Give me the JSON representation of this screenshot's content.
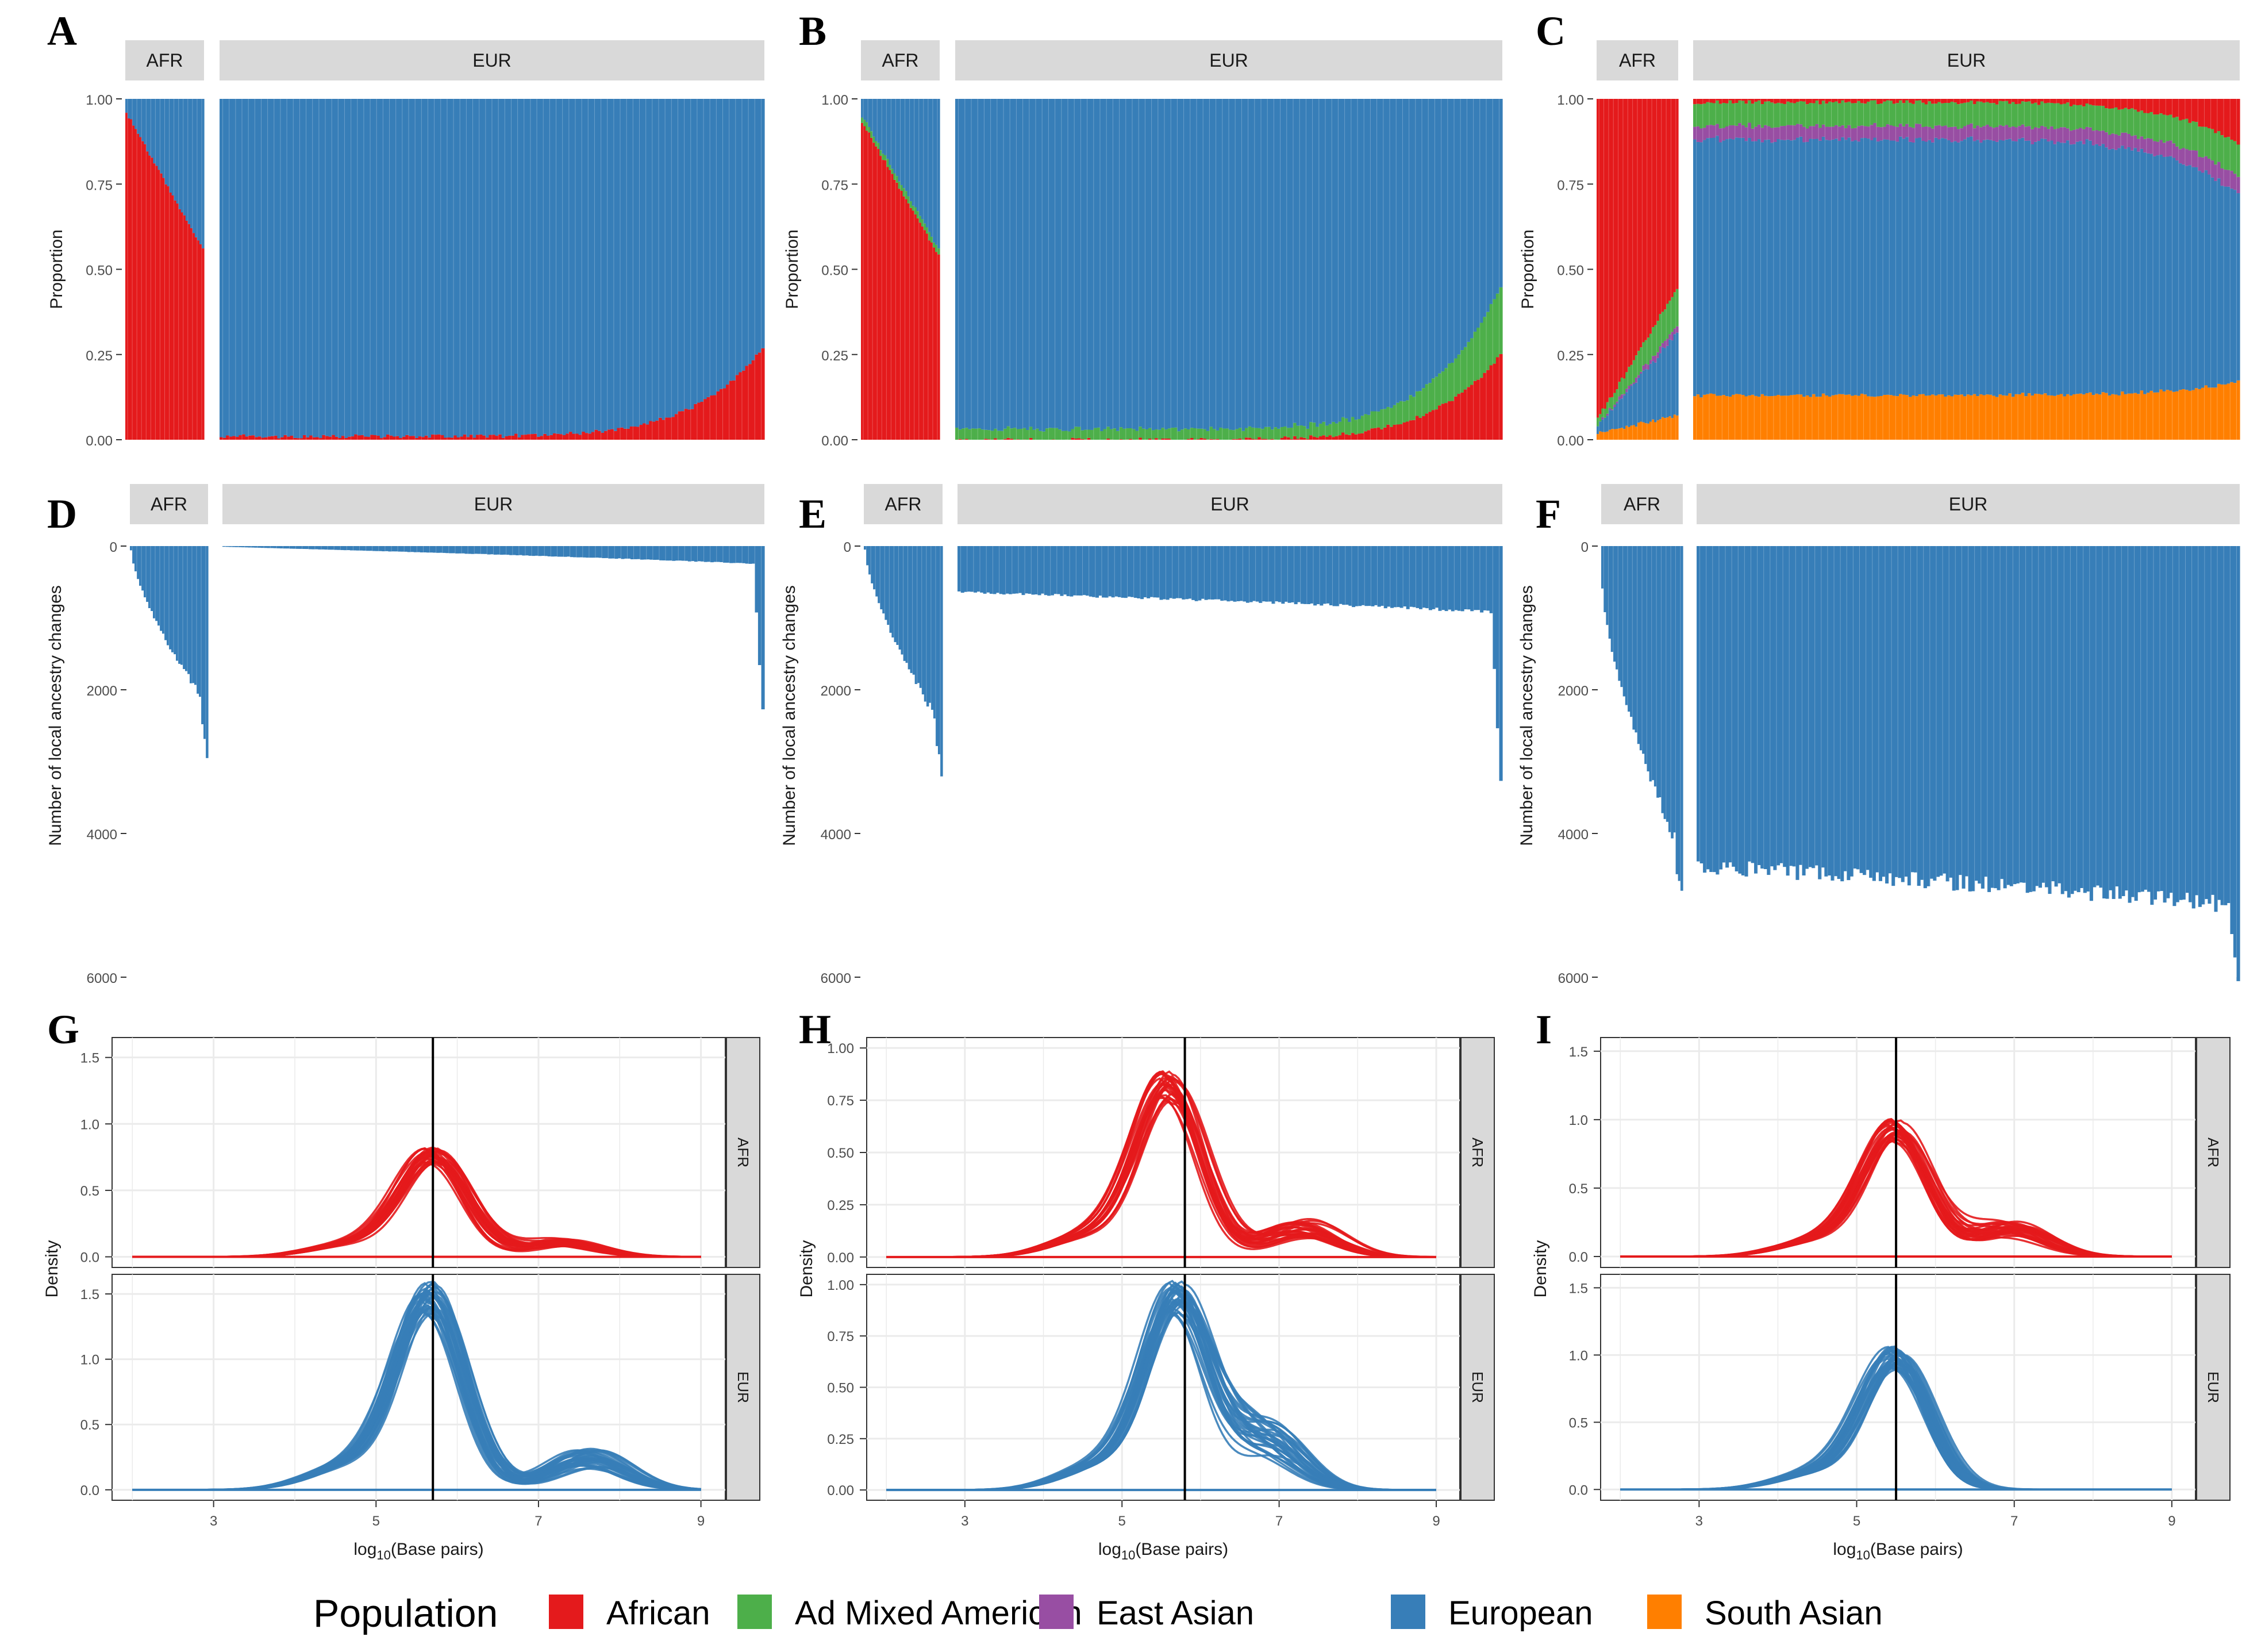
{
  "colors": {
    "African": "#e41a1c",
    "Ad Mixed American": "#4daf4a",
    "East Asian": "#984ea3",
    "European": "#377eb8",
    "South Asian": "#ff7f00",
    "strip": "#d9d9d9",
    "grid": "#ebebeb"
  },
  "legend": {
    "title": "Population",
    "items": [
      {
        "label": "African",
        "color": "#e41a1c"
      },
      {
        "label": "Ad Mixed American",
        "color": "#4daf4a"
      },
      {
        "label": "East Asian",
        "color": "#984ea3"
      },
      {
        "label": "European",
        "color": "#377eb8"
      },
      {
        "label": "South Asian",
        "color": "#ff7f00"
      }
    ]
  },
  "chart_data": [
    {
      "panel": "A",
      "type": "bar",
      "stacked": true,
      "facets": [
        "AFR",
        "EUR"
      ],
      "ylabel": "Proportion",
      "ylim": [
        0,
        1
      ],
      "yticks": [
        "0.00",
        "0.25",
        "0.50",
        "0.75",
        "1.00"
      ],
      "series": [
        {
          "name": "African",
          "AFR_range": [
            0.96,
            0.56
          ],
          "EUR_range": [
            0.01,
            0.27
          ]
        },
        {
          "name": "European",
          "AFR_range": [
            0.04,
            0.44
          ],
          "EUR_range": [
            0.99,
            0.73
          ]
        }
      ]
    },
    {
      "panel": "B",
      "type": "bar",
      "stacked": true,
      "facets": [
        "AFR",
        "EUR"
      ],
      "ylabel": "Proportion",
      "ylim": [
        0,
        1
      ],
      "yticks": [
        "0.00",
        "0.25",
        "0.50",
        "0.75",
        "1.00"
      ],
      "series": [
        {
          "name": "African",
          "AFR_range": [
            0.93,
            0.54
          ],
          "EUR_range": [
            0.0,
            0.25
          ]
        },
        {
          "name": "Ad Mixed American",
          "AFR_range": [
            0.02,
            0.02
          ],
          "EUR_range": [
            0.03,
            0.2
          ]
        },
        {
          "name": "European",
          "AFR_range": [
            0.05,
            0.44
          ],
          "EUR_range": [
            0.97,
            0.55
          ]
        }
      ]
    },
    {
      "panel": "C",
      "type": "bar",
      "stacked": true,
      "facets": [
        "AFR",
        "EUR"
      ],
      "ylabel": "Proportion",
      "ylim": [
        0,
        1
      ],
      "yticks": [
        "0.00",
        "0.25",
        "0.50",
        "0.75",
        "1.00"
      ],
      "series": [
        {
          "name": "South Asian",
          "AFR_range": [
            0.02,
            0.07
          ],
          "EUR_range": [
            0.13,
            0.17
          ]
        },
        {
          "name": "European",
          "AFR_range": [
            0.02,
            0.24
          ],
          "EUR_range": [
            0.75,
            0.55
          ]
        },
        {
          "name": "East Asian",
          "AFR_range": [
            0.0,
            0.02
          ],
          "EUR_range": [
            0.04,
            0.05
          ]
        },
        {
          "name": "Ad Mixed American",
          "AFR_range": [
            0.02,
            0.11
          ],
          "EUR_range": [
            0.07,
            0.1
          ]
        },
        {
          "name": "African",
          "AFR_range": [
            0.94,
            0.56
          ],
          "EUR_range": [
            0.01,
            0.13
          ]
        }
      ]
    },
    {
      "panel": "D",
      "type": "bar",
      "reversed_y": true,
      "facets": [
        "AFR",
        "EUR"
      ],
      "ylabel": "Number of local ancestry changes",
      "ylim": [
        0,
        6000
      ],
      "yticks": [
        "0",
        "2000",
        "4000",
        "6000"
      ],
      "series": [
        {
          "name": "European",
          "AFR_range": [
            60,
            2200
          ],
          "AFR_max": 2880,
          "EUR_range": [
            10,
            250
          ],
          "EUR_max": 2300
        }
      ]
    },
    {
      "panel": "E",
      "type": "bar",
      "reversed_y": true,
      "facets": [
        "AFR",
        "EUR"
      ],
      "ylabel": "Number of local ancestry changes",
      "ylim": [
        0,
        6000
      ],
      "yticks": [
        "0",
        "2000",
        "4000",
        "6000"
      ],
      "series": [
        {
          "name": "European",
          "AFR_range": [
            50,
            2500
          ],
          "AFR_max": 3200,
          "EUR_range": [
            640,
            920
          ],
          "EUR_max": 3300
        }
      ]
    },
    {
      "panel": "F",
      "type": "bar",
      "reversed_y": true,
      "facets": [
        "AFR",
        "EUR"
      ],
      "ylabel": "Number of local ancestry changes",
      "ylim": [
        0,
        6000
      ],
      "yticks": [
        "0",
        "2000",
        "4000",
        "6000"
      ],
      "series": [
        {
          "name": "European",
          "AFR_range": [
            600,
            4300
          ],
          "AFR_max": 4900,
          "EUR_range": [
            4450,
            5000
          ],
          "EUR_max": 6100
        }
      ]
    },
    {
      "panel": "G",
      "type": "line",
      "facets": [
        "AFR",
        "EUR"
      ],
      "xlabel_main": "log",
      "xlabel_sub": "10",
      "xlabel_rest": "(Base pairs)",
      "ylabel": "Density",
      "xlim": [
        1.75,
        9.3
      ],
      "xticks": [
        "3",
        "5",
        "7",
        "9"
      ],
      "ylim_AFR": [
        -0.08,
        1.65
      ],
      "yticks_AFR": [
        "0.0",
        "0.5",
        "1.0",
        "1.5"
      ],
      "ylim_EUR": [
        -0.08,
        1.65
      ],
      "yticks_EUR": [
        "0.0",
        "0.5",
        "1.0",
        "1.5"
      ],
      "vline": 5.7,
      "curves": {
        "AFR": {
          "mu": 5.7,
          "peak": 0.8,
          "second_x": 7.3,
          "second_y": 0.11
        },
        "EUR": {
          "mu": 5.65,
          "peak": 1.55,
          "second_x": 7.6,
          "second_y": 0.25
        }
      }
    },
    {
      "panel": "H",
      "type": "line",
      "facets": [
        "AFR",
        "EUR"
      ],
      "xlabel_main": "log",
      "xlabel_sub": "10",
      "xlabel_rest": "(Base pairs)",
      "ylabel": "Density",
      "xlim": [
        1.75,
        9.3
      ],
      "xticks": [
        "3",
        "5",
        "7",
        "9"
      ],
      "ylim_AFR": [
        -0.05,
        1.05
      ],
      "yticks_AFR": [
        "0.00",
        "0.25",
        "0.50",
        "0.75",
        "1.00"
      ],
      "ylim_EUR": [
        -0.05,
        1.05
      ],
      "yticks_EUR": [
        "0.00",
        "0.25",
        "0.50",
        "0.75",
        "1.00"
      ],
      "vline": 5.8,
      "curves": {
        "AFR": {
          "mu": 5.6,
          "peak": 0.86,
          "second_x": 7.3,
          "second_y": 0.14
        },
        "EUR": {
          "mu": 5.7,
          "peak": 0.98,
          "second_x": 6.8,
          "second_y": 0.27
        }
      }
    },
    {
      "panel": "I",
      "type": "line",
      "facets": [
        "AFR",
        "EUR"
      ],
      "xlabel_main": "log",
      "xlabel_sub": "10",
      "xlabel_rest": "(Base pairs)",
      "ylabel": "Density",
      "xlim": [
        1.75,
        9.3
      ],
      "xticks": [
        "3",
        "5",
        "7",
        "9"
      ],
      "ylim_AFR": [
        -0.08,
        1.6
      ],
      "yticks_AFR": [
        "0.0",
        "0.5",
        "1.0",
        "1.5"
      ],
      "ylim_EUR": [
        -0.08,
        1.6
      ],
      "yticks_EUR": [
        "0.0",
        "0.5",
        "1.0",
        "1.5"
      ],
      "vline": 5.5,
      "curves": {
        "AFR": {
          "mu": 5.5,
          "peak": 0.97,
          "second_x": 6.95,
          "second_y": 0.2
        },
        "EUR": {
          "mu": 5.5,
          "peak": 1.03,
          "second_x": 0,
          "second_y": 0
        }
      }
    }
  ]
}
